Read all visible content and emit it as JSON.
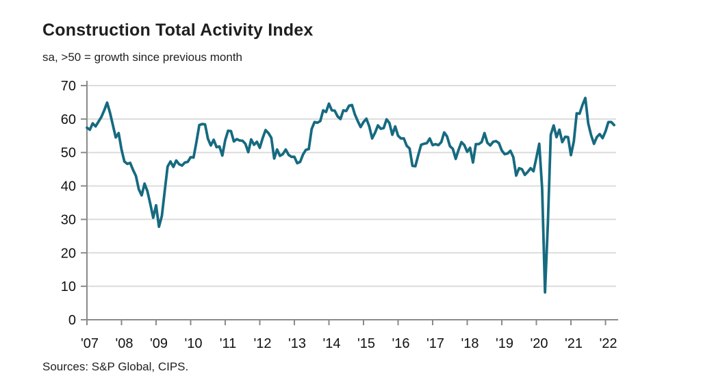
{
  "header": {
    "title": "Construction Total Activity Index",
    "subtitle": "sa, >50 = growth since previous month"
  },
  "footer": {
    "sources": "Sources: S&P Global, CIPS."
  },
  "chart_data": {
    "type": "line",
    "title": "Construction Total Activity Index",
    "subtitle": "sa, >50 = growth since previous month",
    "xlabel": "",
    "ylabel": "",
    "ylim": [
      0,
      70
    ],
    "yticks": [
      0,
      10,
      20,
      30,
      40,
      50,
      60,
      70
    ],
    "grid": "horizontal",
    "legend_position": "none",
    "x_start": "2007-01",
    "x_end": "2022-04",
    "x_frequency": "monthly",
    "xtick_labels": [
      "'07",
      "'08",
      "'09",
      "'10",
      "'11",
      "'12",
      "'13",
      "'14",
      "'15",
      "'16",
      "'17",
      "'18",
      "'19",
      "'20",
      "'21",
      "'22"
    ],
    "colors": {
      "line": "#166a80",
      "grid": "#dcdcdc",
      "axis": "#8a8a8a",
      "text": "#111111"
    },
    "series": [
      {
        "name": "Construction Total Activity Index",
        "values": [
          57.4,
          56.8,
          58.7,
          57.8,
          59.2,
          60.6,
          62.6,
          64.9,
          61.9,
          58.2,
          54.5,
          55.8,
          50.9,
          47.3,
          46.6,
          46.9,
          44.8,
          43.0,
          39.0,
          37.2,
          40.7,
          38.4,
          34.6,
          30.5,
          34.2,
          27.8,
          31.0,
          38.5,
          45.8,
          47.3,
          45.7,
          47.6,
          46.5,
          46.1,
          47.0,
          47.2,
          48.6,
          48.5,
          53.1,
          58.2,
          58.5,
          58.4,
          54.1,
          52.1,
          53.8,
          51.6,
          51.8,
          49.1,
          53.7,
          56.5,
          56.4,
          53.3,
          54.0,
          53.6,
          53.5,
          52.6,
          50.1,
          53.9,
          52.3,
          53.2,
          51.4,
          54.3,
          56.7,
          55.8,
          54.4,
          48.2,
          50.9,
          49.0,
          49.5,
          50.9,
          49.3,
          48.7,
          48.7,
          46.8,
          47.2,
          49.4,
          50.8,
          51.0,
          57.0,
          59.1,
          58.9,
          59.4,
          62.6,
          62.1,
          64.6,
          62.6,
          62.5,
          60.8,
          60.0,
          62.6,
          62.4,
          64.0,
          64.2,
          61.4,
          59.4,
          57.6,
          59.1,
          60.1,
          57.8,
          54.2,
          55.9,
          58.1,
          57.1,
          57.3,
          59.9,
          58.8,
          55.3,
          57.8,
          55.0,
          54.2,
          54.2,
          52.0,
          51.2,
          46.0,
          45.9,
          49.2,
          52.3,
          52.6,
          52.8,
          54.2,
          52.2,
          52.5,
          52.2,
          53.1,
          56.0,
          54.8,
          51.9,
          51.1,
          48.1,
          50.8,
          53.1,
          52.2,
          50.2,
          51.4,
          47.0,
          52.5,
          52.5,
          53.1,
          55.8,
          52.9,
          52.1,
          53.2,
          53.4,
          52.8,
          50.6,
          49.5,
          49.7,
          50.5,
          48.6,
          43.1,
          45.3,
          45.0,
          43.3,
          44.2,
          45.3,
          44.4,
          48.4,
          52.6,
          39.3,
          8.2,
          28.9,
          55.3,
          58.1,
          54.6,
          56.8,
          53.1,
          54.7,
          54.6,
          49.2,
          53.3,
          61.7,
          61.6,
          64.2,
          66.3,
          58.7,
          55.2,
          52.6,
          54.6,
          55.5,
          54.3,
          56.3,
          59.1,
          59.1,
          58.2
        ]
      }
    ]
  }
}
